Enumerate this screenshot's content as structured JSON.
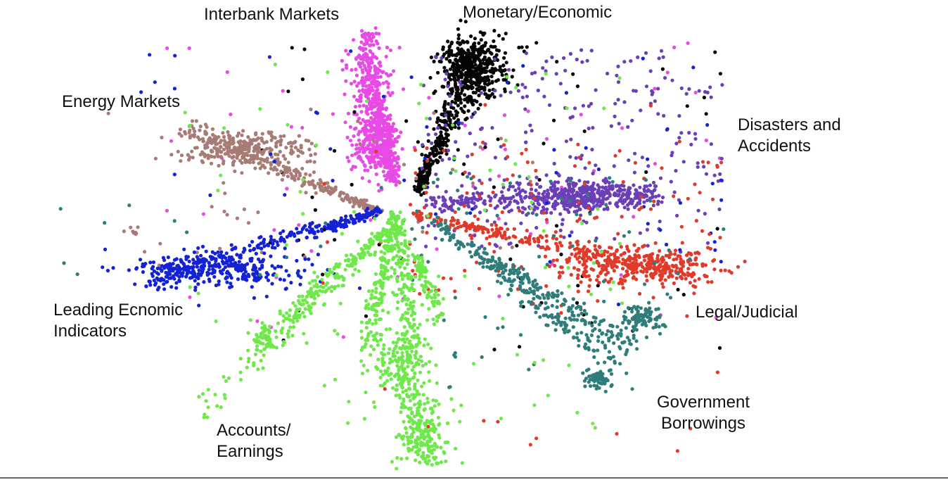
{
  "chart_data": {
    "type": "scatter",
    "title": "",
    "xlabel": "",
    "ylabel": "",
    "axes_visible": false,
    "grid": false,
    "legend": "none",
    "series": [
      {
        "key": "interbank",
        "name": "Interbank Markets",
        "color": "#e84ae6"
      },
      {
        "key": "monetary",
        "name": "Monetary/Economic",
        "color": "#050505"
      },
      {
        "key": "energy",
        "name": "Energy Markets",
        "color": "#a67c74"
      },
      {
        "key": "disasters",
        "name": "Disasters and\nAccidents",
        "color": "#6a3fb8"
      },
      {
        "key": "leading",
        "name": "Leading Ecnomic\nIndicators",
        "color": "#1422d6"
      },
      {
        "key": "legal",
        "name": "Legal/Judicial",
        "color": "#e03a2a"
      },
      {
        "key": "government",
        "name": "Government\nBorrowings",
        "color": "#2f7d7b"
      },
      {
        "key": "accounts",
        "name": "Accounts/\nEarnings",
        "color": "#6fe84a"
      }
    ]
  }
}
